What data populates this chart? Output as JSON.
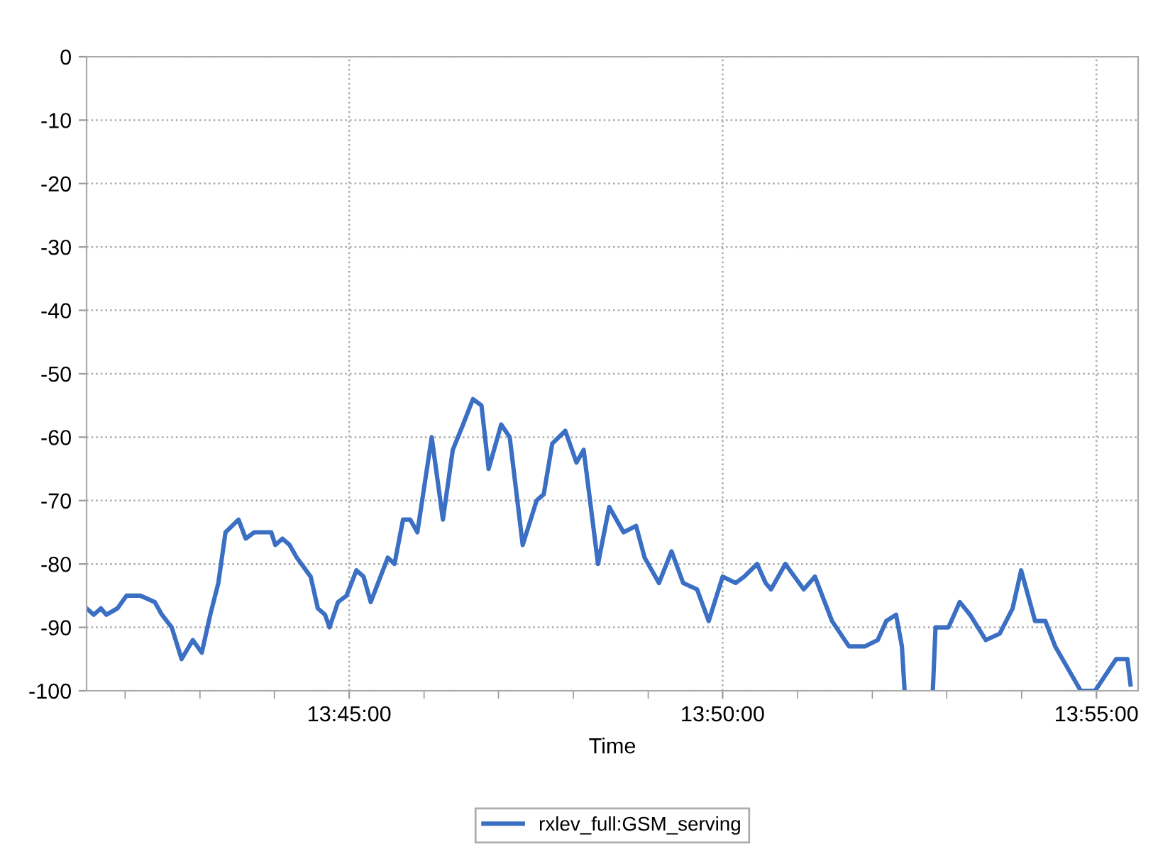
{
  "chart_data": {
    "type": "line",
    "xlabel": "Time",
    "x": [
      13.6914,
      13.693,
      13.6946,
      13.6958,
      13.6983,
      13.7003,
      13.7034,
      13.7066,
      13.7082,
      13.7104,
      13.7126,
      13.7151,
      13.7171,
      13.719,
      13.7208,
      13.7224,
      13.7253,
      13.7269,
      13.7288,
      13.7326,
      13.7335,
      13.7351,
      13.7367,
      13.7383,
      13.7414,
      13.743,
      13.7446,
      13.7456,
      13.7475,
      13.7494,
      13.7516,
      13.7532,
      13.7548,
      13.7586,
      13.7601,
      13.762,
      13.7636,
      13.7652,
      13.7684,
      13.7709,
      13.7731,
      13.7754,
      13.7776,
      13.7795,
      13.7811,
      13.7839,
      13.7858,
      13.7887,
      13.7918,
      13.7934,
      13.7953,
      13.7982,
      13.8007,
      13.8023,
      13.8055,
      13.808,
      13.8112,
      13.814,
      13.8159,
      13.8191,
      13.8219,
      13.8245,
      13.8276,
      13.8302,
      13.8333,
      13.8362,
      13.8381,
      13.841,
      13.8429,
      13.8441,
      13.8473,
      13.8514,
      13.8539,
      13.8577,
      13.8615,
      13.865,
      13.8679,
      13.8698,
      13.872,
      13.8733,
      13.8739,
      13.877,
      13.8802,
      13.8808,
      13.8837,
      13.8862,
      13.8885,
      13.892,
      13.8951,
      13.898,
      13.8999,
      13.903,
      13.9053,
      13.9075,
      13.9132,
      13.9164,
      13.9211,
      13.9236,
      13.9243
    ],
    "series": [
      {
        "name": "rxlev_full:GSM_serving",
        "color": "#3a6fc4",
        "values": [
          -87,
          -88,
          -87,
          -88,
          -87,
          -85,
          -85,
          -86,
          -88,
          -90,
          -95,
          -92,
          -94,
          -88,
          -83,
          -75,
          -73,
          -76,
          -75,
          -75,
          -77,
          -76,
          -77,
          -79,
          -82,
          -87,
          -88,
          -90,
          -86,
          -85,
          -81,
          -82,
          -86,
          -79,
          -80,
          -73,
          -73,
          -75,
          -60,
          -73,
          -62,
          -58,
          -54,
          -55,
          -65,
          -58,
          -60,
          -77,
          -70,
          -69,
          -61,
          -59,
          -64,
          -62,
          -80,
          -71,
          -75,
          -74,
          -79,
          -83,
          -78,
          -83,
          -84,
          -89,
          -82,
          -83,
          -82,
          -80,
          -83,
          -84,
          -80,
          -84,
          -82,
          -89,
          -93,
          -93,
          -92,
          -89,
          -88,
          -93,
          -100,
          null,
          -100,
          -90,
          -90,
          -86,
          -88,
          -92,
          -91,
          -87,
          -81,
          -89,
          -89,
          -93,
          -100,
          -100,
          -95,
          -95,
          -99
        ]
      }
    ],
    "xlim": [
      13.6914,
      13.926
    ],
    "xticks": [
      {
        "value": 13.7,
        "label": null
      },
      {
        "value": 13.7167,
        "label": null
      },
      {
        "value": 13.7333,
        "label": null
      },
      {
        "value": 13.75,
        "label": "13:45:00"
      },
      {
        "value": 13.7667,
        "label": null
      },
      {
        "value": 13.7833,
        "label": null
      },
      {
        "value": 13.8,
        "label": null
      },
      {
        "value": 13.8167,
        "label": null
      },
      {
        "value": 13.8333,
        "label": "13:50:00"
      },
      {
        "value": 13.85,
        "label": null
      },
      {
        "value": 13.8667,
        "label": null
      },
      {
        "value": 13.8833,
        "label": null
      },
      {
        "value": 13.9,
        "label": null
      },
      {
        "value": 13.9167,
        "label": "13:55:00"
      }
    ],
    "ylim": [
      -100,
      0
    ],
    "yticks": [
      -100,
      -90,
      -80,
      -70,
      -60,
      -50,
      -40,
      -30,
      -20,
      -10,
      0
    ],
    "grid": true,
    "legend": "bottom",
    "marker": "none",
    "line_style": "solid"
  }
}
